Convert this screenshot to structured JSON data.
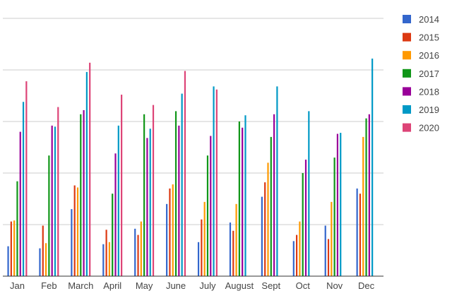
{
  "chart_data": {
    "type": "bar",
    "title": "",
    "xlabel": "",
    "ylabel": "",
    "ylim": [
      0,
      250
    ],
    "grid": true,
    "legend_position": "right",
    "categories": [
      "Jan",
      "Feb",
      "March",
      "April",
      "May",
      "June",
      "July",
      "August",
      "Sept",
      "Oct",
      "Nov",
      "Dec"
    ],
    "series": [
      {
        "name": "2014",
        "color": "#3366cc",
        "values": [
          29,
          27,
          65,
          31,
          46,
          70,
          33,
          52,
          77,
          34,
          49,
          85
        ]
      },
      {
        "name": "2015",
        "color": "#dc3912",
        "values": [
          53,
          49,
          88,
          45,
          40,
          85,
          55,
          44,
          91,
          40,
          36,
          80
        ]
      },
      {
        "name": "2016",
        "color": "#ff9900",
        "values": [
          54,
          32,
          86,
          33,
          53,
          89,
          72,
          70,
          110,
          53,
          72,
          135
        ]
      },
      {
        "name": "2017",
        "color": "#109618",
        "values": [
          92,
          117,
          157,
          80,
          157,
          160,
          117,
          150,
          135,
          100,
          115,
          153
        ]
      },
      {
        "name": "2018",
        "color": "#990099",
        "values": [
          140,
          146,
          161,
          119,
          134,
          146,
          136,
          144,
          157,
          113,
          138,
          157
        ]
      },
      {
        "name": "2019",
        "color": "#0099c6",
        "values": [
          169,
          145,
          198,
          146,
          143,
          177,
          184,
          156,
          184,
          160,
          139,
          211
        ]
      },
      {
        "name": "2020",
        "color": "#dd4477",
        "values": [
          189,
          164,
          207,
          176,
          166,
          199,
          181,
          null,
          null,
          null,
          null,
          null
        ]
      }
    ]
  }
}
